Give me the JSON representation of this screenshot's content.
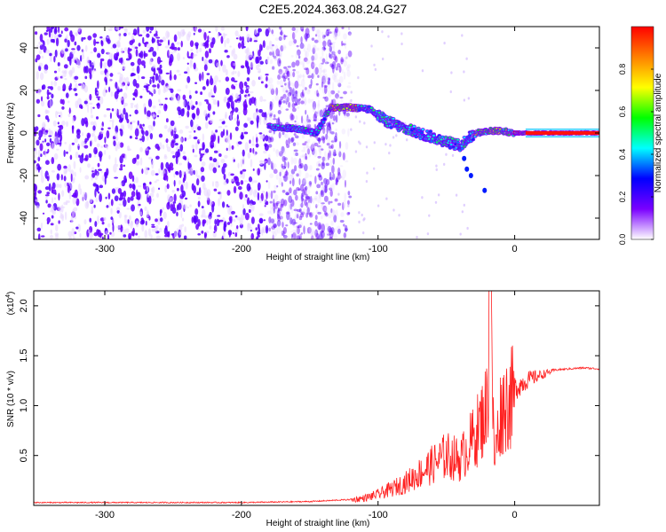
{
  "title": "C2E5.2024.363.08.24.G27",
  "chart_data": [
    {
      "type": "heatmap",
      "xlabel": "Height of straight line (km)",
      "ylabel": "Frequency (Hz)",
      "xlim": [
        -352,
        62
      ],
      "ylim": [
        -50,
        50
      ],
      "xticks": [
        -300,
        -200,
        -100,
        0
      ],
      "yticks": [
        -40,
        -20,
        0,
        20,
        40
      ],
      "colorbar": {
        "label": "Normalized spectral amplitude",
        "range": [
          0.0,
          1.0
        ],
        "ticks": [
          0.0,
          0.2,
          0.4,
          0.6,
          0.8
        ],
        "colors": [
          "#ffffff",
          "#7a00ff",
          "#0000ff",
          "#00ffff",
          "#00ff00",
          "#ffff00",
          "#ff8000",
          "#ff0000"
        ]
      },
      "noise_region_x": [
        -352,
        -130
      ],
      "signal_track": [
        {
          "x": -180,
          "y": 3
        },
        {
          "x": -160,
          "y": 2
        },
        {
          "x": -145,
          "y": 0
        },
        {
          "x": -135,
          "y": 12
        },
        {
          "x": -120,
          "y": 12
        },
        {
          "x": -105,
          "y": 11
        },
        {
          "x": -95,
          "y": 6
        },
        {
          "x": -80,
          "y": 2
        },
        {
          "x": -65,
          "y": -1
        },
        {
          "x": -50,
          "y": -4
        },
        {
          "x": -40,
          "y": -6
        },
        {
          "x": -35,
          "y": -3
        },
        {
          "x": -28,
          "y": 0
        },
        {
          "x": -20,
          "y": 1
        },
        {
          "x": -10,
          "y": 1
        },
        {
          "x": 0,
          "y": 0
        },
        {
          "x": 62,
          "y": 0
        }
      ]
    },
    {
      "type": "line",
      "xlabel": "Height of straight line (km)",
      "ylabel": "SNR (10 * v/v)",
      "scale_label": "(x10",
      "scale_exp": "4",
      "scale_suffix": ")",
      "xlim": [
        -352,
        62
      ],
      "ylim": [
        0,
        2.15
      ],
      "xticks": [
        -300,
        -200,
        -100,
        0
      ],
      "yticks": [
        0.5,
        1.0,
        1.5,
        2.0
      ],
      "ytick_labels": [
        "0.5",
        "1.0",
        "1.5",
        "2.0"
      ],
      "color": "#ff2020",
      "series": [
        {
          "x": [
            -352,
            -300,
            -250,
            -200,
            -150,
            -120,
            -110,
            -100,
            -90,
            -80,
            -70,
            -60,
            -50,
            -40,
            -30,
            -25,
            -20,
            -18,
            -15,
            -10,
            -5,
            0,
            10,
            20,
            30,
            40,
            50,
            62
          ],
          "y": [
            0.03,
            0.03,
            0.03,
            0.03,
            0.04,
            0.06,
            0.08,
            0.12,
            0.18,
            0.25,
            0.35,
            0.45,
            0.55,
            0.5,
            0.75,
            0.9,
            1.1,
            2.15,
            0.5,
            1.05,
            1.15,
            1.2,
            1.28,
            1.32,
            1.36,
            1.37,
            1.38,
            1.37
          ]
        }
      ]
    }
  ]
}
